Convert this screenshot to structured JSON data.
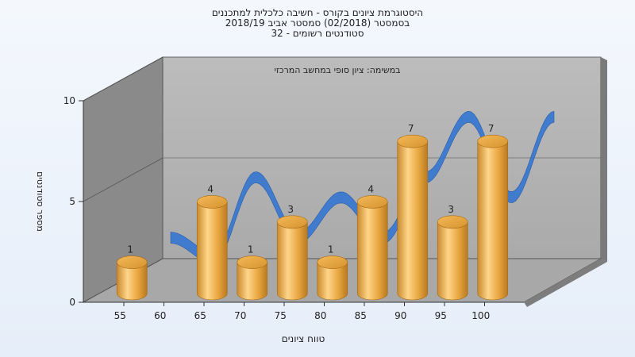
{
  "chart_data": {
    "type": "bar",
    "title_lines": [
      "היסטוגרמת ציונים בקורס - חשיבה כלכלית למתכננים",
      "בסמסטר (02/2018) סמסטר אביב 2018/19",
      "סטודנטים רשומים - 32"
    ],
    "subtitle": "במשימה: ציון סופי במחשב המרכזי",
    "xlabel": "טווח ציונים",
    "ylabel": "מספר סטודנטים",
    "categories": [
      "55",
      "60",
      "65",
      "70",
      "75",
      "80",
      "85",
      "90",
      "95",
      "100"
    ],
    "values": [
      1,
      0,
      4,
      1,
      3,
      1,
      4,
      7,
      3,
      7
    ],
    "yticks": [
      0,
      5,
      10
    ],
    "ylim": [
      0,
      10
    ],
    "grid": true,
    "three_d": true,
    "colors": {
      "bar": "#e8a640",
      "bar_light": "#ffd58a",
      "bar_dark": "#b87a20",
      "curve": "#3a78d0",
      "back_wall": "#b4b4b4",
      "side_wall": "#8a8a8a",
      "floor": "#a8a8a8"
    }
  }
}
